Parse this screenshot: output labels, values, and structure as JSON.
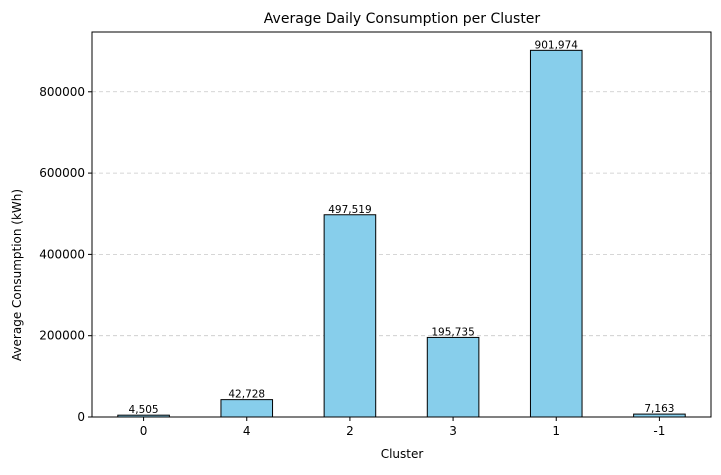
{
  "chart_data": {
    "type": "bar",
    "title": "Average Daily Consumption per Cluster",
    "xlabel": "Cluster",
    "ylabel": "Average Consumption (kWh)",
    "categories": [
      "0",
      "4",
      "2",
      "3",
      "1",
      "-1"
    ],
    "values": [
      4505,
      42728,
      497519,
      195735,
      901974,
      7163
    ],
    "value_labels": [
      "4,505",
      "42,728",
      "497,519",
      "195,735",
      "901,974",
      "7,163"
    ],
    "ylim": [
      0,
      947073
    ],
    "yticks": [
      0,
      200000,
      400000,
      600000,
      800000
    ],
    "ytick_labels": [
      "0",
      "200000",
      "400000",
      "600000",
      "800000"
    ],
    "grid": "y-axis dashed",
    "legend": "none",
    "bar_color": "#87ceeb",
    "bar_edge_color": "#000000",
    "grid_color": "#c8c8c8"
  }
}
